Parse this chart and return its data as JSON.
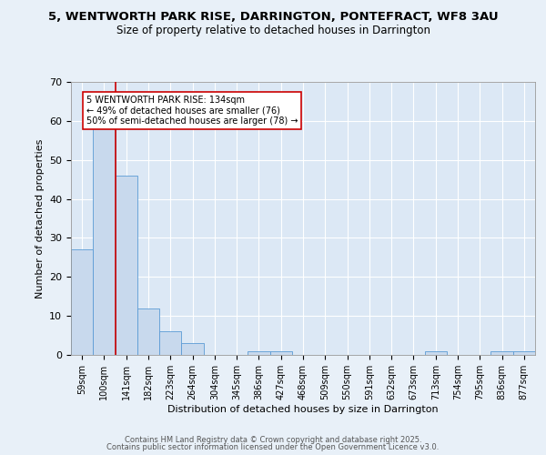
{
  "title_line1": "5, WENTWORTH PARK RISE, DARRINGTON, PONTEFRACT, WF8 3AU",
  "title_line2": "Size of property relative to detached houses in Darrington",
  "xlabel": "Distribution of detached houses by size in Darrington",
  "ylabel": "Number of detached properties",
  "bar_color": "#c8d9ed",
  "bar_edge_color": "#5b9bd5",
  "background_color": "#e8f0f8",
  "plot_bg_color": "#dce8f5",
  "grid_color": "#ffffff",
  "vline_color": "#cc0000",
  "annotation_text": "5 WENTWORTH PARK RISE: 134sqm\n← 49% of detached houses are smaller (76)\n50% of semi-detached houses are larger (78) →",
  "annotation_box_color": "#ffffff",
  "annotation_border_color": "#cc0000",
  "categories": [
    "59sqm",
    "100sqm",
    "141sqm",
    "182sqm",
    "223sqm",
    "264sqm",
    "304sqm",
    "345sqm",
    "386sqm",
    "427sqm",
    "468sqm",
    "509sqm",
    "550sqm",
    "591sqm",
    "632sqm",
    "673sqm",
    "713sqm",
    "754sqm",
    "795sqm",
    "836sqm",
    "877sqm"
  ],
  "values": [
    27,
    59,
    46,
    12,
    6,
    3,
    0,
    0,
    1,
    1,
    0,
    0,
    0,
    0,
    0,
    0,
    1,
    0,
    0,
    1,
    1
  ],
  "ylim": [
    0,
    70
  ],
  "yticks": [
    0,
    10,
    20,
    30,
    40,
    50,
    60,
    70
  ],
  "footer_line1": "Contains HM Land Registry data © Crown copyright and database right 2025.",
  "footer_line2": "Contains public sector information licensed under the Open Government Licence v3.0."
}
